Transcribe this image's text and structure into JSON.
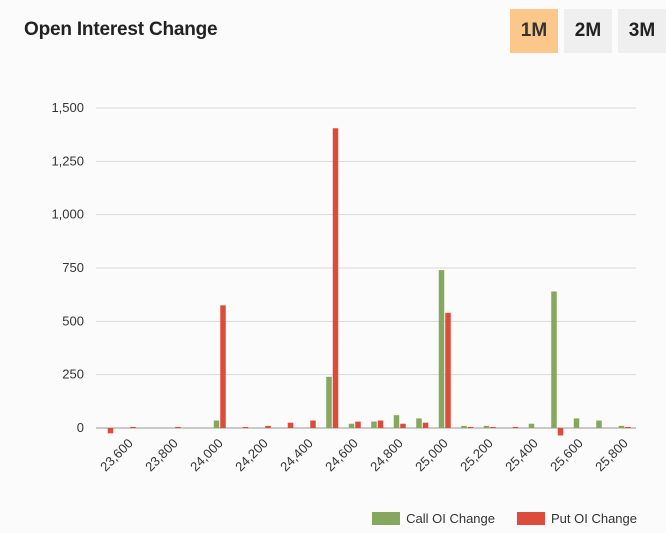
{
  "header": {
    "title": "Open Interest Change"
  },
  "range_buttons": [
    {
      "label": "1M",
      "active": true
    },
    {
      "label": "2M",
      "active": false
    },
    {
      "label": "3M",
      "active": false
    }
  ],
  "colors": {
    "call": "#85a85e",
    "put": "#dd4b3a",
    "grid": "#d9d9d9",
    "active_button": "#fcc78a"
  },
  "chart_data": {
    "type": "bar",
    "title": "Open Interest Change",
    "xlabel": "",
    "ylabel": "",
    "ylim": [
      0,
      1500
    ],
    "yticks": [
      0,
      250,
      500,
      750,
      1000,
      1250,
      1500
    ],
    "ytick_labels": [
      "0",
      "250",
      "500",
      "750",
      "1,000",
      "1,250",
      "1,500"
    ],
    "xtick_labels": [
      "23,600",
      "23,800",
      "24,000",
      "24,200",
      "24,400",
      "24,600",
      "24,800",
      "25,000",
      "25,200",
      "25,400",
      "25,600",
      "25,800"
    ],
    "categories": [
      "23500",
      "23600",
      "23700",
      "23800",
      "23900",
      "24000",
      "24100",
      "24200",
      "24300",
      "24400",
      "24500",
      "24600",
      "24700",
      "24800",
      "24900",
      "25000",
      "25100",
      "25200",
      "25300",
      "25400",
      "25500",
      "25600",
      "25700",
      "25800"
    ],
    "series": [
      {
        "name": "Call OI Change",
        "values": [
          0,
          0,
          0,
          0,
          0,
          35,
          0,
          0,
          0,
          0,
          240,
          20,
          30,
          60,
          45,
          740,
          10,
          10,
          0,
          20,
          640,
          45,
          35,
          10
        ]
      },
      {
        "name": "Put OI Change",
        "values": [
          -25,
          5,
          0,
          5,
          0,
          575,
          5,
          10,
          25,
          35,
          1405,
          30,
          35,
          20,
          25,
          540,
          5,
          5,
          5,
          0,
          -35,
          0,
          0,
          5
        ]
      }
    ],
    "legend": "bottom-right"
  }
}
